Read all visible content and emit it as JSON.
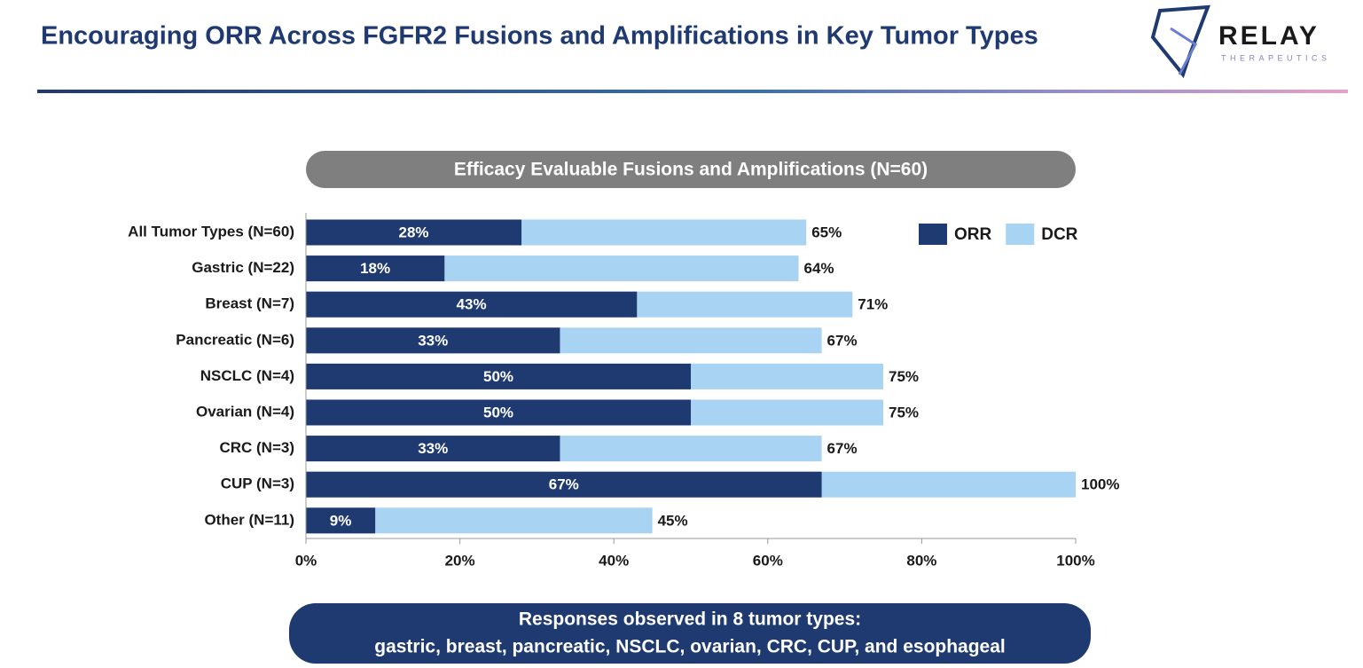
{
  "header": {
    "title": "Encouraging ORR Across FGFR2 Fusions and Amplifications in Key Tumor Types"
  },
  "logo": {
    "name": "RELAY",
    "tagline": "THERAPEUTICS"
  },
  "chart_data": {
    "type": "hbar-overlay",
    "title": "Efficacy Evaluable Fusions and Amplifications (N=60)",
    "categories": [
      "All Tumor Types (N=60)",
      "Gastric (N=22)",
      "Breast (N=7)",
      "Pancreatic (N=6)",
      "NSCLC (N=4)",
      "Ovarian (N=4)",
      "CRC (N=3)",
      "CUP (N=3)",
      "Other (N=11)"
    ],
    "series": [
      {
        "name": "ORR",
        "color": "#1f3a70",
        "values": [
          28,
          18,
          43,
          33,
          50,
          50,
          33,
          67,
          9
        ],
        "value_labels": [
          "28%",
          "18%",
          "43%",
          "33%",
          "50%",
          "50%",
          "33%",
          "67%",
          "9%"
        ]
      },
      {
        "name": "DCR",
        "color": "#a9d3f2",
        "values": [
          65,
          64,
          71,
          67,
          75,
          75,
          67,
          100,
          45
        ],
        "value_labels": [
          "65%",
          "64%",
          "71%",
          "67%",
          "75%",
          "75%",
          "67%",
          "100%",
          "45%"
        ]
      }
    ],
    "xlim": [
      0,
      100
    ],
    "xticks": [
      {
        "value": 0,
        "label": "0%"
      },
      {
        "value": 20,
        "label": "20%"
      },
      {
        "value": 40,
        "label": "40%"
      },
      {
        "value": 60,
        "label": "60%"
      },
      {
        "value": 80,
        "label": "80%"
      },
      {
        "value": 100,
        "label": "100%"
      }
    ],
    "legend": "top-right",
    "grid": false
  },
  "footer": {
    "lines": [
      "Responses observed in 8 tumor types:",
      "gastric, breast, pancreatic, NSCLC, ovarian, CRC, CUP, and esophageal"
    ]
  }
}
